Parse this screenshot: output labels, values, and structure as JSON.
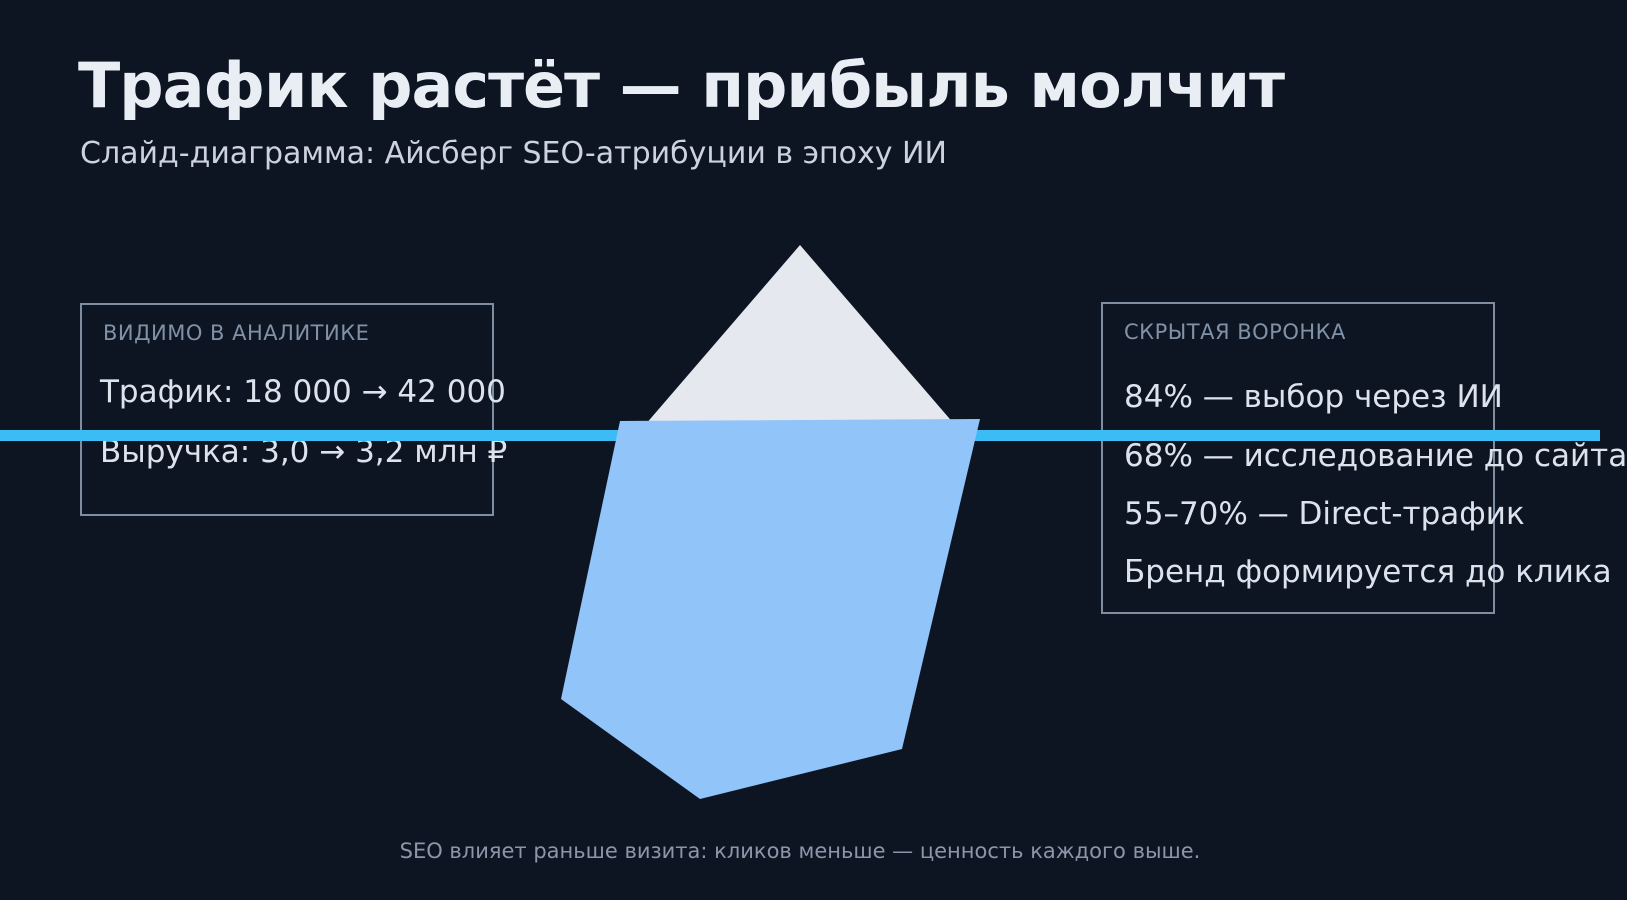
{
  "slide": {
    "title": "Трафик растёт — прибыль молчит",
    "subtitle": "Слайд-диаграмма: Айсберг SEO-атрибуции в эпоху ИИ",
    "caption": "SEO влияет раньше визита: кликов меньше — ценность каждого выше."
  },
  "visible_panel": {
    "header": "ВИДИМО В АНАЛИТИКЕ",
    "lines": [
      "Трафик: 18 000 → 42 000",
      "Выручка: 3,0 → 3,2 млн ₽"
    ]
  },
  "hidden_panel": {
    "header": "СКРЫТАЯ ВОРОНКА",
    "lines": [
      "84% — выбор через ИИ",
      "68% — исследование до сайта",
      "55–70% — Direct-трафик",
      "Бренд формируется до клика"
    ]
  },
  "iceberg": {
    "tip_points": "800,245 955,425 645,425",
    "underwater_points": "620,421 980,419 902,749 700,799 561,699",
    "tip_color": "#e5e8ef",
    "underwater_color": "#91c4f8"
  },
  "colors": {
    "background": "#0d1522",
    "waterline": "#3bbcf5",
    "panel_border": "#7e8da0",
    "panel_header_text": "#8192a7",
    "panel_body_text": "#dde3ec",
    "title_text": "#e9edf4",
    "subtitle_text": "#ccd3de",
    "caption_text": "#8b97a9"
  }
}
